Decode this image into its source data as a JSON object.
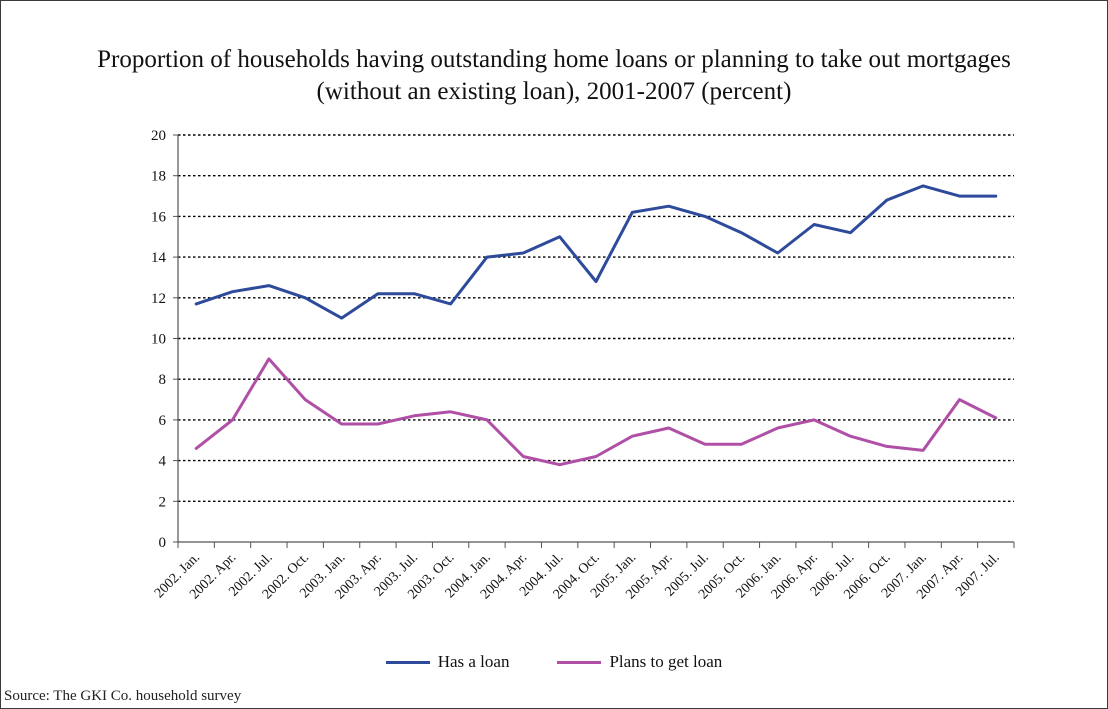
{
  "chart_data": {
    "type": "line",
    "title_lines": [
      "Proportion of households having outstanding home loans or planning to take out mortgages",
      "(without an existing loan), 2001-2007 (percent)"
    ],
    "xlabel": "",
    "ylabel": "",
    "ylim": [
      0,
      20
    ],
    "yticks": [
      "0",
      "2",
      "4",
      "6",
      "8",
      "10",
      "12",
      "14",
      "16",
      "18",
      "20"
    ],
    "grid": "dotted horizontal",
    "legend_position": "bottom-center",
    "categories": [
      "2002. Jan.",
      "2002. Apr.",
      "2002. Jul.",
      "2002. Oct.",
      "2003. Jan.",
      "2003. Apr.",
      "2003. Jul.",
      "2003. Oct.",
      "2004. Jan.",
      "2004. Apr.",
      "2004. Jul.",
      "2004. Oct.",
      "2005. Jan.",
      "2005. Apr.",
      "2005. Jul.",
      "2005. Oct.",
      "2006. Jan.",
      "2006. Apr.",
      "2006. Jul.",
      "2006. Oct.",
      "2007. Jan.",
      "2007. Apr.",
      "2007. Jul."
    ],
    "series": [
      {
        "name": "Has a loan",
        "color": "#2e4a9a",
        "values": [
          11.7,
          12.3,
          12.6,
          12.0,
          11.0,
          12.2,
          12.2,
          11.7,
          14.0,
          14.2,
          15.0,
          12.8,
          16.2,
          16.5,
          16.0,
          15.2,
          14.2,
          15.6,
          15.2,
          16.8,
          17.5,
          17.0,
          17.0
        ]
      },
      {
        "name": "Plans to get loan",
        "color": "#b04fa6",
        "values": [
          4.6,
          6.0,
          9.0,
          7.0,
          5.8,
          5.8,
          6.2,
          6.4,
          6.0,
          4.2,
          3.8,
          4.2,
          5.2,
          5.6,
          4.8,
          4.8,
          5.6,
          6.0,
          5.2,
          4.7,
          4.5,
          7.0,
          6.1
        ]
      }
    ]
  },
  "source": "Source: The GKI Co. household survey"
}
